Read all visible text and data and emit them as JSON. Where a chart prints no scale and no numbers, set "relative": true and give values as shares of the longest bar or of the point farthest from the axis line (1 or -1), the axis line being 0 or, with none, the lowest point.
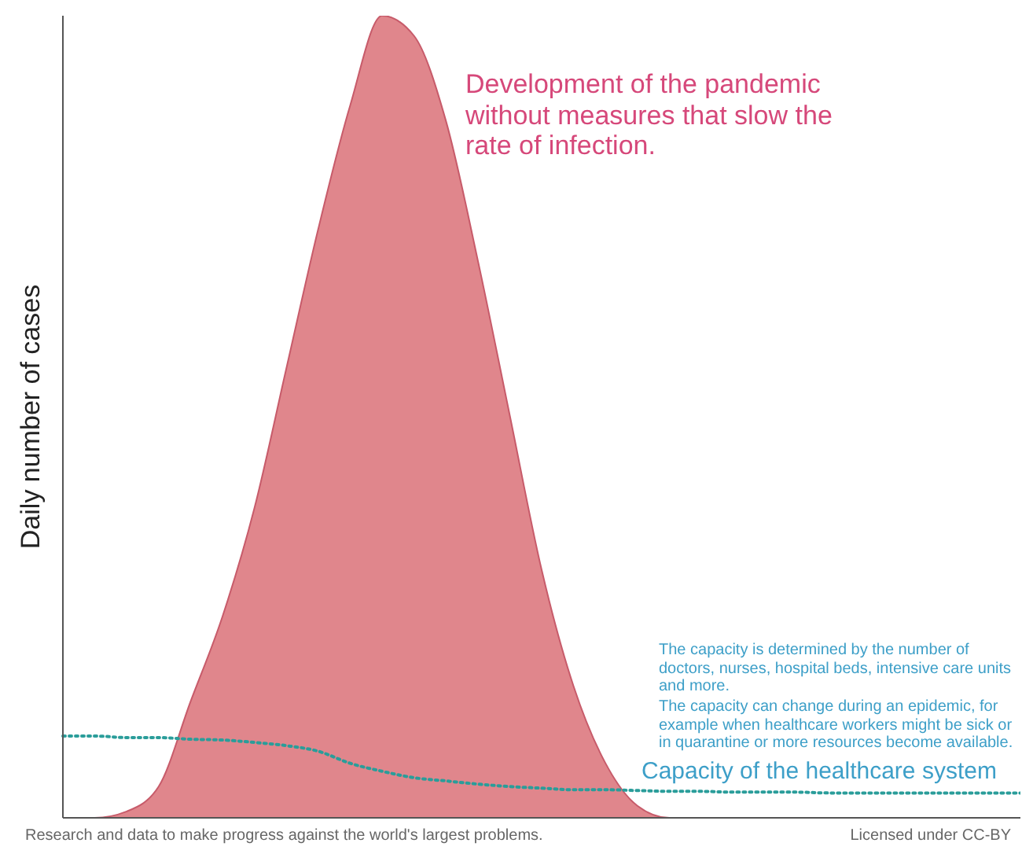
{
  "chart_data": {
    "type": "area",
    "relative": true,
    "ylabel": "Daily number of cases",
    "legend": false,
    "grid": false,
    "categories": [
      null,
      null,
      null,
      null,
      null,
      null,
      null,
      null,
      null,
      null,
      null,
      null,
      null,
      null,
      null,
      null,
      null,
      null,
      null,
      null,
      null,
      null,
      null,
      null,
      null,
      null,
      null,
      null,
      null,
      null,
      null
    ],
    "series": [
      {
        "name": "Development of the pandemic without measures that slow the rate of infection.",
        "color": "#e0868c",
        "values": [
          0,
          0,
          0.008,
          0.039,
          0.145,
          0.251,
          0.386,
          0.56,
          0.734,
          0.888,
          1,
          0.975,
          0.869,
          0.695,
          0.502,
          0.309,
          0.164,
          0.068,
          0.015,
          0,
          0,
          0,
          0,
          0,
          0,
          0,
          0,
          0,
          0,
          0,
          0
        ]
      },
      {
        "name": "Capacity of the healthcare system",
        "type": "line",
        "color": "#2a9d9a",
        "line_style": "dotted",
        "values": [
          0.102,
          0.102,
          0.1,
          0.1,
          0.098,
          0.097,
          0.094,
          0.09,
          0.083,
          0.068,
          0.058,
          0.05,
          0.046,
          0.042,
          0.039,
          0.037,
          0.035,
          0.035,
          0.034,
          0.033,
          0.033,
          0.032,
          0.032,
          0.032,
          0.031,
          0.031,
          0.031,
          0.031,
          0.031,
          0.031,
          0.031
        ]
      }
    ],
    "annotations": [
      "The capacity is determined by the number of doctors, nurses, hospital beds, intensive care units and more.",
      "The capacity can change during an epidemic, for example when healthcare workers might be sick or in quarantine or more resources become available.",
      "Research and data to make progress against the world's largest problems.",
      "Licensed under CC-BY"
    ]
  }
}
